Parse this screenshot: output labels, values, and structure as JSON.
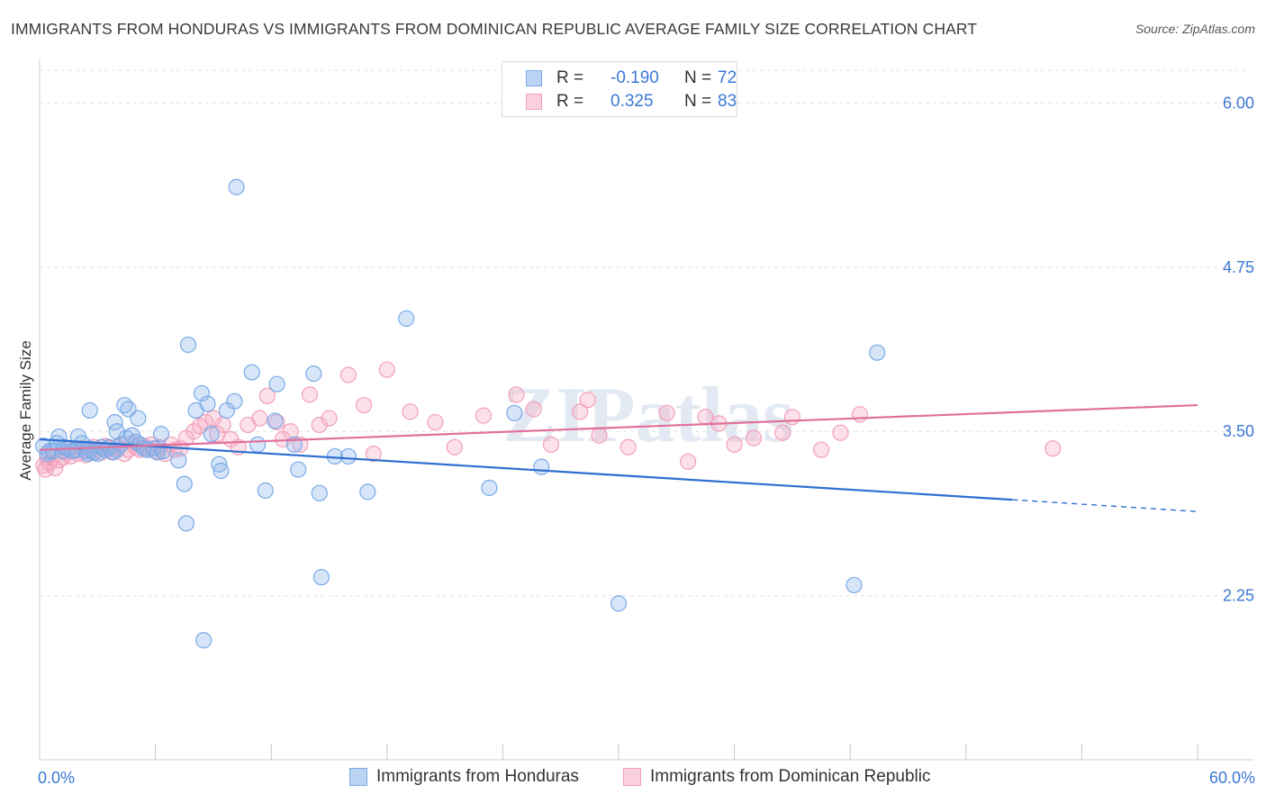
{
  "title": "IMMIGRANTS FROM HONDURAS VS IMMIGRANTS FROM DOMINICAN REPUBLIC AVERAGE FAMILY SIZE CORRELATION CHART",
  "source": "Source: ZipAtlas.com",
  "watermark": "ZIPatlas",
  "legend": {
    "rows": [
      {
        "r_label": "R =",
        "r_value": "-0.190",
        "n_label": "N =",
        "n_value": "72"
      },
      {
        "r_label": "R =",
        "r_value": "0.325",
        "n_label": "N =",
        "n_value": "83"
      }
    ]
  },
  "chart_data": {
    "type": "scatter",
    "title": "IMMIGRANTS FROM HONDURAS VS IMMIGRANTS FROM DOMINICAN REPUBLIC AVERAGE FAMILY SIZE CORRELATION CHART",
    "xlabel": "",
    "ylabel": "Average Family Size",
    "xlim": [
      0,
      60
    ],
    "ylim": [
      1.0,
      6.25
    ],
    "x_tick_labels": [
      {
        "value": 0,
        "label": "0.0%"
      },
      {
        "value": 60,
        "label": "60.0%"
      }
    ],
    "y_ticks": [
      {
        "value": 2.25,
        "label": "2.25"
      },
      {
        "value": 3.5,
        "label": "3.50"
      },
      {
        "value": 4.75,
        "label": "4.75"
      },
      {
        "value": 6.0,
        "label": "6.00"
      }
    ],
    "grid": "horizontal dashed",
    "legend_position": "top-center",
    "colors": {
      "honduras": "#7aaae6",
      "dominican": "#f2a0bb",
      "honduras_line": "#2f6fd0",
      "dominican_line": "#e0709a",
      "tick_label": "#3a78d4"
    },
    "series": [
      {
        "name": "Immigrants from Honduras",
        "r": -0.19,
        "n": 72,
        "trend": {
          "x0": 0,
          "y0": 3.44,
          "x1": 50.4,
          "y1": 2.98,
          "dashed_to_x": 60,
          "dashed_to_y": 2.89
        },
        "points": [
          [
            0.2,
            3.39
          ],
          [
            0.4,
            3.33
          ],
          [
            0.5,
            3.35
          ],
          [
            0.7,
            3.35
          ],
          [
            0.9,
            3.41
          ],
          [
            1.0,
            3.46
          ],
          [
            1.2,
            3.35
          ],
          [
            1.3,
            3.38
          ],
          [
            1.5,
            3.37
          ],
          [
            1.7,
            3.35
          ],
          [
            1.9,
            3.36
          ],
          [
            2.0,
            3.46
          ],
          [
            2.2,
            3.41
          ],
          [
            2.4,
            3.35
          ],
          [
            2.5,
            3.33
          ],
          [
            2.6,
            3.37
          ],
          [
            2.8,
            3.34
          ],
          [
            3.0,
            3.33
          ],
          [
            3.2,
            3.38
          ],
          [
            3.4,
            3.36
          ],
          [
            3.6,
            3.38
          ],
          [
            3.8,
            3.34
          ],
          [
            4.0,
            3.36
          ],
          [
            4.2,
            3.4
          ],
          [
            4.5,
            3.45
          ],
          [
            4.8,
            3.47
          ],
          [
            5.0,
            3.42
          ],
          [
            5.2,
            3.4
          ],
          [
            5.4,
            3.37
          ],
          [
            5.6,
            3.36
          ],
          [
            5.9,
            3.37
          ],
          [
            6.1,
            3.34
          ],
          [
            6.4,
            3.35
          ],
          [
            2.6,
            3.66
          ],
          [
            3.9,
            3.57
          ],
          [
            4.0,
            3.5
          ],
          [
            4.4,
            3.7
          ],
          [
            4.6,
            3.67
          ],
          [
            5.1,
            3.6
          ],
          [
            6.3,
            3.48
          ],
          [
            7.2,
            3.28
          ],
          [
            7.5,
            3.1
          ],
          [
            7.6,
            2.8
          ],
          [
            7.7,
            4.16
          ],
          [
            8.1,
            3.66
          ],
          [
            8.4,
            3.79
          ],
          [
            8.5,
            1.91
          ],
          [
            8.7,
            3.71
          ],
          [
            8.9,
            3.48
          ],
          [
            9.3,
            3.25
          ],
          [
            9.4,
            3.2
          ],
          [
            9.7,
            3.66
          ],
          [
            10.1,
            3.73
          ],
          [
            10.2,
            5.36
          ],
          [
            11.0,
            3.95
          ],
          [
            11.3,
            3.4
          ],
          [
            11.7,
            3.05
          ],
          [
            12.2,
            3.58
          ],
          [
            12.3,
            3.86
          ],
          [
            13.2,
            3.4
          ],
          [
            13.4,
            3.21
          ],
          [
            14.2,
            3.94
          ],
          [
            14.5,
            3.03
          ],
          [
            14.6,
            2.39
          ],
          [
            15.3,
            3.31
          ],
          [
            16.0,
            3.31
          ],
          [
            17.0,
            3.04
          ],
          [
            19.0,
            4.36
          ],
          [
            23.3,
            3.07
          ],
          [
            24.6,
            3.64
          ],
          [
            26.0,
            3.23
          ],
          [
            30.0,
            2.19
          ],
          [
            43.4,
            4.1
          ],
          [
            42.2,
            2.33
          ]
        ]
      },
      {
        "name": "Immigrants from Dominican Republic",
        "r": 0.325,
        "n": 83,
        "trend": {
          "x0": 0,
          "y0": 3.36,
          "x1": 60,
          "y1": 3.7
        },
        "points": [
          [
            0.2,
            3.24
          ],
          [
            0.3,
            3.21
          ],
          [
            0.4,
            3.3
          ],
          [
            0.5,
            3.26
          ],
          [
            0.7,
            3.3
          ],
          [
            0.8,
            3.22
          ],
          [
            1.0,
            3.28
          ],
          [
            1.2,
            3.3
          ],
          [
            1.4,
            3.34
          ],
          [
            1.6,
            3.31
          ],
          [
            1.8,
            3.36
          ],
          [
            2.0,
            3.33
          ],
          [
            2.2,
            3.37
          ],
          [
            2.4,
            3.32
          ],
          [
            2.6,
            3.35
          ],
          [
            2.8,
            3.38
          ],
          [
            3.0,
            3.36
          ],
          [
            3.2,
            3.34
          ],
          [
            3.4,
            3.39
          ],
          [
            3.6,
            3.37
          ],
          [
            3.8,
            3.35
          ],
          [
            4.0,
            3.38
          ],
          [
            4.2,
            3.4
          ],
          [
            4.4,
            3.33
          ],
          [
            4.6,
            3.36
          ],
          [
            4.8,
            3.41
          ],
          [
            5.0,
            3.38
          ],
          [
            5.2,
            3.36
          ],
          [
            5.4,
            3.39
          ],
          [
            5.6,
            3.37
          ],
          [
            5.8,
            3.4
          ],
          [
            6.0,
            3.35
          ],
          [
            6.2,
            3.38
          ],
          [
            6.5,
            3.33
          ],
          [
            6.8,
            3.4
          ],
          [
            7.0,
            3.36
          ],
          [
            7.3,
            3.37
          ],
          [
            7.6,
            3.45
          ],
          [
            8.0,
            3.5
          ],
          [
            8.3,
            3.54
          ],
          [
            8.6,
            3.57
          ],
          [
            9.0,
            3.6
          ],
          [
            9.2,
            3.48
          ],
          [
            9.5,
            3.55
          ],
          [
            9.9,
            3.44
          ],
          [
            10.3,
            3.38
          ],
          [
            10.8,
            3.55
          ],
          [
            11.4,
            3.6
          ],
          [
            11.8,
            3.77
          ],
          [
            12.3,
            3.57
          ],
          [
            12.6,
            3.44
          ],
          [
            13.0,
            3.5
          ],
          [
            13.5,
            3.4
          ],
          [
            14.0,
            3.78
          ],
          [
            14.5,
            3.55
          ],
          [
            15.0,
            3.6
          ],
          [
            16.0,
            3.93
          ],
          [
            16.8,
            3.7
          ],
          [
            17.3,
            3.33
          ],
          [
            18.0,
            3.97
          ],
          [
            19.2,
            3.65
          ],
          [
            20.5,
            3.57
          ],
          [
            21.5,
            3.38
          ],
          [
            23.0,
            3.62
          ],
          [
            24.7,
            3.78
          ],
          [
            25.6,
            3.67
          ],
          [
            26.5,
            3.4
          ],
          [
            28.0,
            3.65
          ],
          [
            28.4,
            3.74
          ],
          [
            29.0,
            3.47
          ],
          [
            30.5,
            3.38
          ],
          [
            32.5,
            3.64
          ],
          [
            33.6,
            3.27
          ],
          [
            34.5,
            3.61
          ],
          [
            35.2,
            3.56
          ],
          [
            36.0,
            3.4
          ],
          [
            37.0,
            3.45
          ],
          [
            38.5,
            3.49
          ],
          [
            39.0,
            3.61
          ],
          [
            40.5,
            3.36
          ],
          [
            41.5,
            3.49
          ],
          [
            42.5,
            3.63
          ],
          [
            52.5,
            3.37
          ]
        ]
      }
    ]
  },
  "bottom_legend": [
    {
      "label": "Immigrants from Honduras"
    },
    {
      "label": "Immigrants from Dominican Republic"
    }
  ]
}
